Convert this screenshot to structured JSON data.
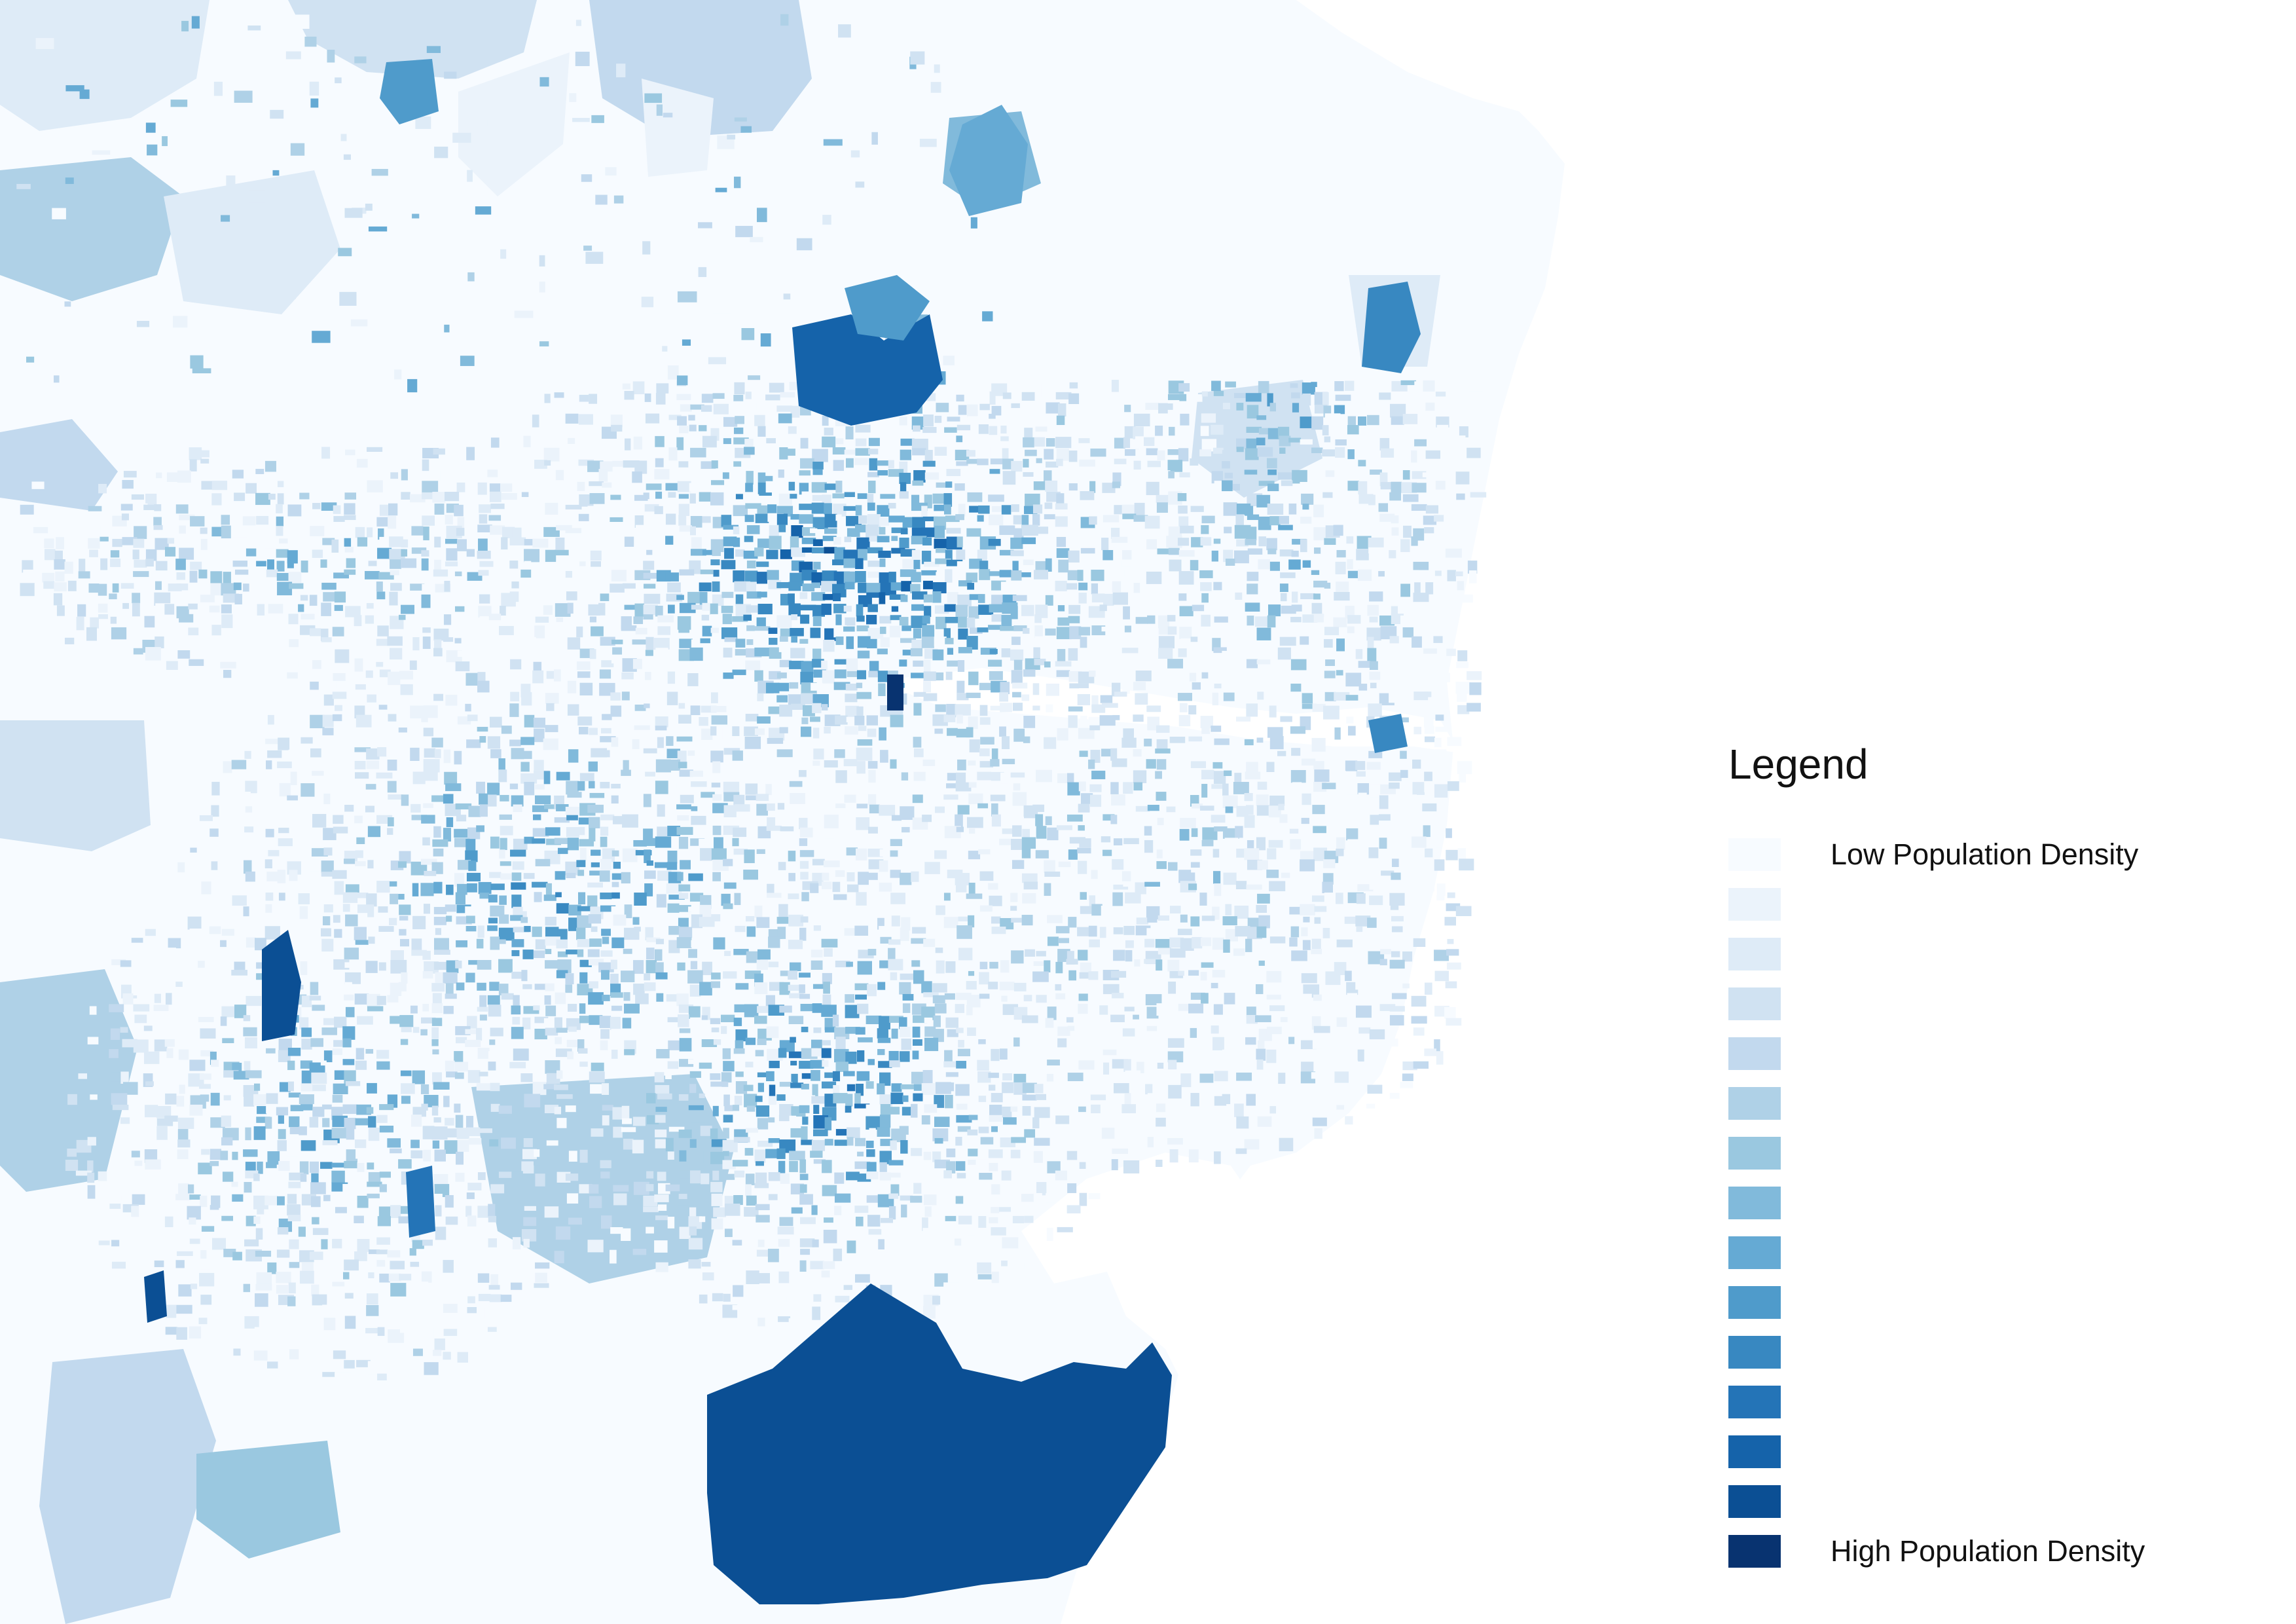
{
  "legend": {
    "title": "Legend",
    "low_label": "Low Population Density",
    "high_label": "High Population Density",
    "classes": [
      {
        "color": "#f7fbff",
        "label": "Low Population Density"
      },
      {
        "color": "#ebf3fb",
        "label": ""
      },
      {
        "color": "#deebf7",
        "label": ""
      },
      {
        "color": "#d0e2f2",
        "label": ""
      },
      {
        "color": "#c2d9ee",
        "label": ""
      },
      {
        "color": "#afd1e7",
        "label": ""
      },
      {
        "color": "#9ac8e0",
        "label": ""
      },
      {
        "color": "#81badb",
        "label": ""
      },
      {
        "color": "#65aad4",
        "label": ""
      },
      {
        "color": "#4f9bcb",
        "label": ""
      },
      {
        "color": "#3888c1",
        "label": ""
      },
      {
        "color": "#2474b7",
        "label": ""
      },
      {
        "color": "#1563aa",
        "label": ""
      },
      {
        "color": "#0b4f94",
        "label": ""
      },
      {
        "color": "#083370",
        "label": "High Population Density"
      }
    ]
  },
  "map": {
    "background_color": "#f7fbff",
    "ocean_color": "#ffffff",
    "ramp_from": "#f7fbff",
    "ramp_to": "#083370"
  }
}
